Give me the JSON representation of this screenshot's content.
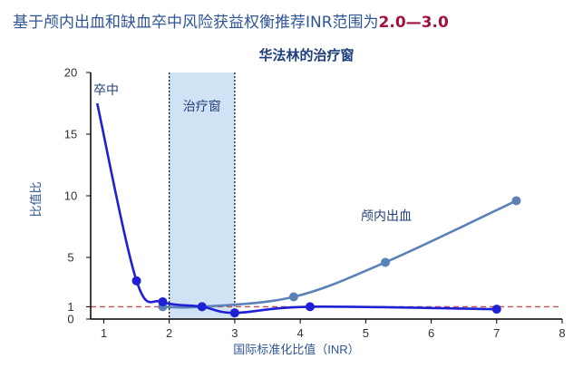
{
  "headline": {
    "prefix": "基于颅内出血和缺血卒中风险获益权衡推荐INR范围为",
    "highlight": "2.0—3.0"
  },
  "colors": {
    "headline": "#2f5597",
    "highlight": "#a0143c",
    "stroke_series": "#1f1fd6",
    "ich_series": "#5a82b8",
    "window_fill": "#cfe3f4",
    "reference_line": "#c0504d"
  },
  "chart_data": {
    "type": "line",
    "title": "华法林的治疗窗",
    "xlabel": "国际标准化比值（INR）",
    "ylabel": "比值比",
    "xlim": [
      0.8,
      8
    ],
    "ylim": [
      0,
      20
    ],
    "xticks": [
      1,
      2,
      3,
      4,
      5,
      6,
      7,
      8
    ],
    "yticks": [
      0,
      1,
      5,
      10,
      15,
      20
    ],
    "grid": false,
    "reference_line": {
      "y": 1,
      "style": "dashed"
    },
    "therapeutic_window": {
      "x_from": 2,
      "x_to": 3,
      "label": "治疗窗"
    },
    "series": [
      {
        "name": "卒中",
        "color": "#1f1fd6",
        "points": [
          [
            0.9,
            17.5
          ],
          [
            1.5,
            3.1
          ],
          [
            1.9,
            1.4
          ],
          [
            2.5,
            1.0
          ],
          [
            3.0,
            0.5
          ],
          [
            4.15,
            1.0
          ],
          [
            7.0,
            0.8
          ]
        ],
        "markers_from_index": 1
      },
      {
        "name": "颅内出血",
        "color": "#5a82b8",
        "points": [
          [
            1.9,
            1.0
          ],
          [
            2.5,
            1.0
          ],
          [
            3.9,
            1.8
          ],
          [
            5.3,
            4.6
          ],
          [
            7.3,
            9.6
          ]
        ],
        "markers_from_index": 0
      }
    ]
  }
}
